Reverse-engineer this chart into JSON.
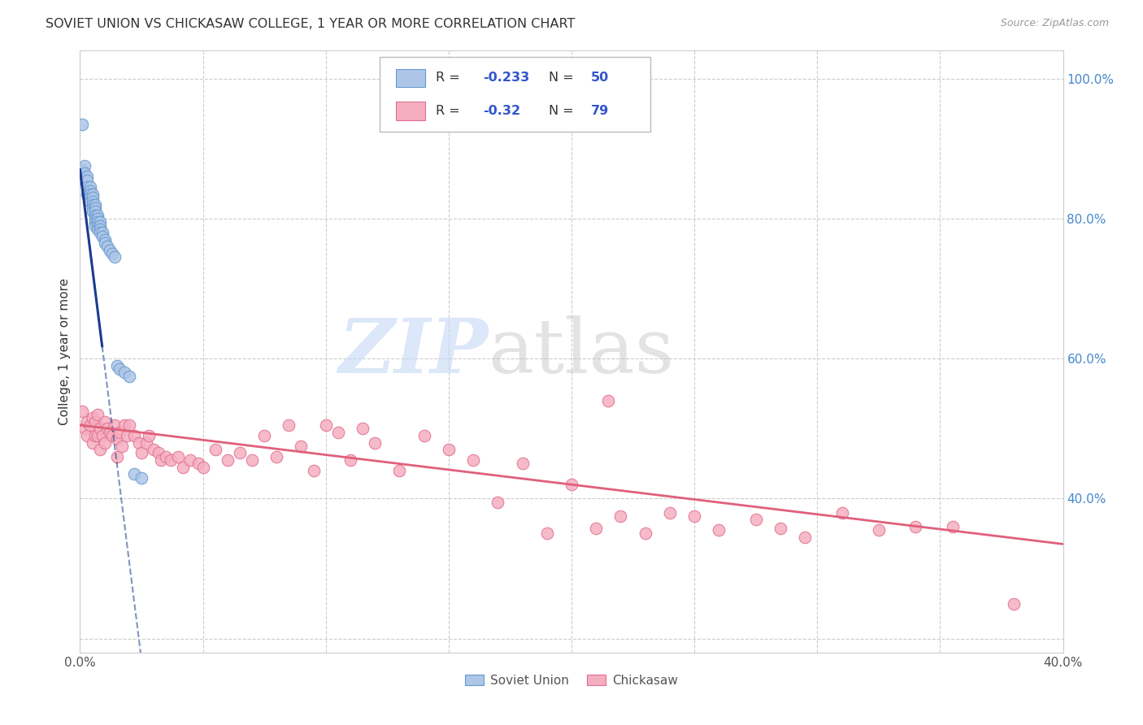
{
  "title": "SOVIET UNION VS CHICKASAW COLLEGE, 1 YEAR OR MORE CORRELATION CHART",
  "source": "Source: ZipAtlas.com",
  "ylabel": "College, 1 year or more",
  "xlim": [
    0.0,
    0.4
  ],
  "ylim": [
    0.18,
    1.04
  ],
  "xtick_positions": [
    0.0,
    0.05,
    0.1,
    0.15,
    0.2,
    0.25,
    0.3,
    0.35,
    0.4
  ],
  "xtick_labels": [
    "0.0%",
    "",
    "",
    "",
    "",
    "",
    "",
    "",
    "40.0%"
  ],
  "ytick_positions": [
    0.2,
    0.4,
    0.6,
    0.8,
    1.0
  ],
  "ytick_labels": [
    "",
    "40.0%",
    "60.0%",
    "80.0%",
    "100.0%"
  ],
  "R_soviet": -0.233,
  "N_soviet": 50,
  "R_chickasaw": -0.32,
  "N_chickasaw": 79,
  "soviet_color": "#adc6e8",
  "soviet_edge": "#6699cc",
  "chickasaw_color": "#f5aec0",
  "chickasaw_edge": "#e07090",
  "trend_soviet_color": "#1a3a8c",
  "trend_chickasaw_color": "#e0607a",
  "grid_color": "#cccccc",
  "background": "#ffffff",
  "soviet_x": [
    0.001,
    0.001,
    0.002,
    0.002,
    0.002,
    0.003,
    0.003,
    0.003,
    0.003,
    0.004,
    0.004,
    0.004,
    0.004,
    0.004,
    0.005,
    0.005,
    0.005,
    0.005,
    0.005,
    0.005,
    0.006,
    0.006,
    0.006,
    0.006,
    0.006,
    0.006,
    0.006,
    0.007,
    0.007,
    0.007,
    0.007,
    0.007,
    0.008,
    0.008,
    0.008,
    0.008,
    0.009,
    0.009,
    0.01,
    0.01,
    0.011,
    0.012,
    0.013,
    0.014,
    0.015,
    0.016,
    0.018,
    0.02,
    0.022,
    0.025
  ],
  "soviet_y": [
    0.935,
    0.87,
    0.875,
    0.865,
    0.855,
    0.86,
    0.855,
    0.845,
    0.835,
    0.845,
    0.84,
    0.835,
    0.83,
    0.825,
    0.835,
    0.83,
    0.825,
    0.82,
    0.815,
    0.81,
    0.82,
    0.815,
    0.81,
    0.805,
    0.8,
    0.795,
    0.79,
    0.805,
    0.8,
    0.795,
    0.79,
    0.785,
    0.795,
    0.79,
    0.785,
    0.78,
    0.78,
    0.775,
    0.77,
    0.765,
    0.76,
    0.755,
    0.75,
    0.745,
    0.59,
    0.585,
    0.58,
    0.575,
    0.435,
    0.43
  ],
  "chickasaw_x": [
    0.001,
    0.002,
    0.003,
    0.003,
    0.004,
    0.005,
    0.005,
    0.006,
    0.006,
    0.007,
    0.007,
    0.008,
    0.008,
    0.009,
    0.01,
    0.01,
    0.011,
    0.012,
    0.013,
    0.014,
    0.015,
    0.015,
    0.016,
    0.017,
    0.018,
    0.019,
    0.02,
    0.022,
    0.024,
    0.025,
    0.027,
    0.028,
    0.03,
    0.032,
    0.033,
    0.035,
    0.037,
    0.04,
    0.042,
    0.045,
    0.048,
    0.05,
    0.055,
    0.06,
    0.065,
    0.07,
    0.075,
    0.08,
    0.085,
    0.09,
    0.095,
    0.1,
    0.105,
    0.11,
    0.115,
    0.12,
    0.13,
    0.14,
    0.15,
    0.16,
    0.17,
    0.18,
    0.19,
    0.2,
    0.21,
    0.215,
    0.22,
    0.23,
    0.24,
    0.25,
    0.26,
    0.275,
    0.285,
    0.295,
    0.31,
    0.325,
    0.34,
    0.355,
    0.38
  ],
  "chickasaw_y": [
    0.525,
    0.5,
    0.51,
    0.49,
    0.505,
    0.515,
    0.48,
    0.51,
    0.49,
    0.52,
    0.49,
    0.5,
    0.47,
    0.49,
    0.51,
    0.48,
    0.5,
    0.495,
    0.49,
    0.505,
    0.485,
    0.46,
    0.495,
    0.475,
    0.505,
    0.49,
    0.505,
    0.49,
    0.48,
    0.465,
    0.48,
    0.49,
    0.47,
    0.465,
    0.455,
    0.46,
    0.455,
    0.46,
    0.445,
    0.455,
    0.45,
    0.445,
    0.47,
    0.455,
    0.465,
    0.455,
    0.49,
    0.46,
    0.505,
    0.475,
    0.44,
    0.505,
    0.495,
    0.455,
    0.5,
    0.48,
    0.44,
    0.49,
    0.47,
    0.455,
    0.395,
    0.45,
    0.35,
    0.42,
    0.358,
    0.54,
    0.375,
    0.35,
    0.38,
    0.375,
    0.355,
    0.37,
    0.358,
    0.345,
    0.38,
    0.355,
    0.36,
    0.36,
    0.25
  ],
  "soviet_trend_x0": 0.0,
  "soviet_trend_x_solid_end": 0.009,
  "soviet_trend_x_dashed_end": 0.17,
  "soviet_trend_y0": 0.87,
  "soviet_trend_slope": -28.0,
  "chickasaw_trend_x0": 0.0,
  "chickasaw_trend_x1": 0.4,
  "chickasaw_trend_y0": 0.505,
  "chickasaw_trend_y1": 0.335
}
